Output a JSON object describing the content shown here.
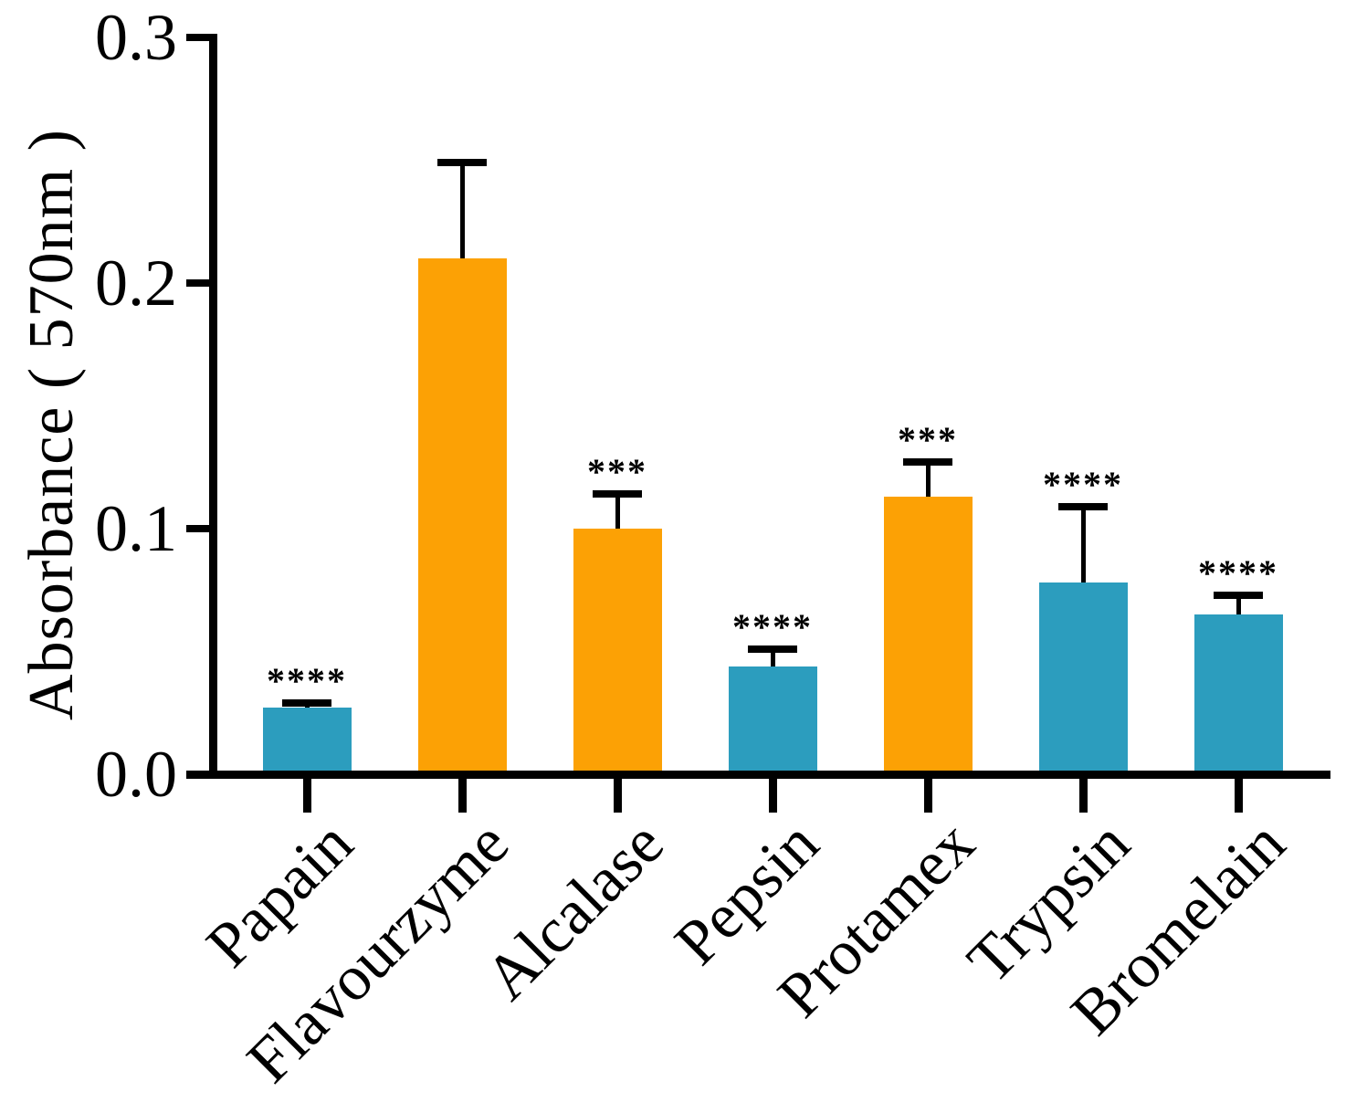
{
  "chart_data": {
    "type": "bar",
    "title": "",
    "ylabel": "Absorbance ( 570nm )",
    "xlabel": "",
    "ylim": [
      0,
      0.3
    ],
    "yticks": [
      0,
      0.1,
      0.2,
      0.3
    ],
    "ytick_labels": [
      "0.0",
      "0.1",
      "0.2",
      "0.3"
    ],
    "grid": false,
    "legend_position": "none",
    "categories": [
      "Papain",
      "Flavourzyme",
      "Alcalase",
      "Pepsin",
      "Protamex",
      "Trypsin",
      "Bromelain"
    ],
    "values": [
      0.027,
      0.21,
      0.1,
      0.044,
      0.113,
      0.078,
      0.065
    ],
    "errors_plus": [
      0.002,
      0.039,
      0.014,
      0.007,
      0.014,
      0.031,
      0.008
    ],
    "significance": [
      "****",
      "",
      "***",
      "****",
      "***",
      "****",
      "****"
    ],
    "bar_color_keys": [
      "teal",
      "orange",
      "orange",
      "teal",
      "orange",
      "teal",
      "teal"
    ],
    "palette": {
      "teal": "#2C9DBE",
      "orange": "#FCA105",
      "axis": "#000000"
    }
  }
}
